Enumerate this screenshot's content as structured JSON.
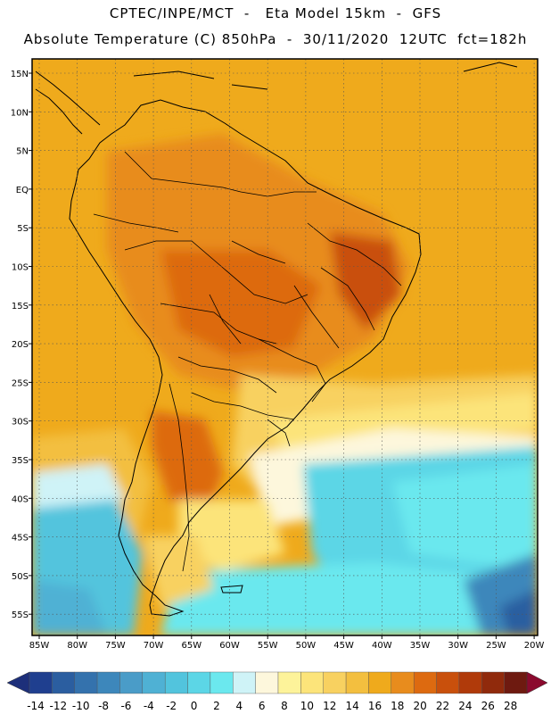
{
  "header": {
    "line1": "CPTEC/INPE/MCT  -   Eta Model 15km  -  GFS",
    "line2": "Absolute Temperature (C) 850hPa  -  30/11/2020  12UTC  fct=182h"
  },
  "map": {
    "lat_labels": [
      "15N",
      "10N",
      "5N",
      "EQ",
      "5S",
      "10S",
      "15S",
      "20S",
      "25S",
      "30S",
      "35S",
      "40S",
      "45S",
      "50S",
      "55S"
    ],
    "lon_labels": [
      "85W",
      "80W",
      "75W",
      "70W",
      "65W",
      "60W",
      "55W",
      "50W",
      "45W",
      "40W",
      "35W",
      "30W",
      "25W",
      "20W"
    ],
    "gridlines": "dotted"
  },
  "colorbar": {
    "labels": [
      "-14",
      "-12",
      "-10",
      "-8",
      "-6",
      "-4",
      "-2",
      "0",
      "2",
      "4",
      "6",
      "8",
      "10",
      "12",
      "14",
      "16",
      "18",
      "20",
      "22",
      "24",
      "26",
      "28"
    ],
    "colors": [
      "#1f3f8f",
      "#2b5ea0",
      "#3472ad",
      "#3d87bb",
      "#4a9cc8",
      "#4fb1d4",
      "#52c4dd",
      "#5cd6e6",
      "#6be8ee",
      "#cff3f7",
      "#fdf7dc",
      "#fdf39a",
      "#fce47a",
      "#f8d160",
      "#f3bf3f",
      "#efaa1c",
      "#e88c1d",
      "#dd6a10",
      "#c9500c",
      "#b03a0a",
      "#902a0c",
      "#6e1a10",
      "#8b0a2e"
    ],
    "left_arrow_color": "#1d2f7a",
    "right_arrow_color": "#8b0a2e"
  }
}
